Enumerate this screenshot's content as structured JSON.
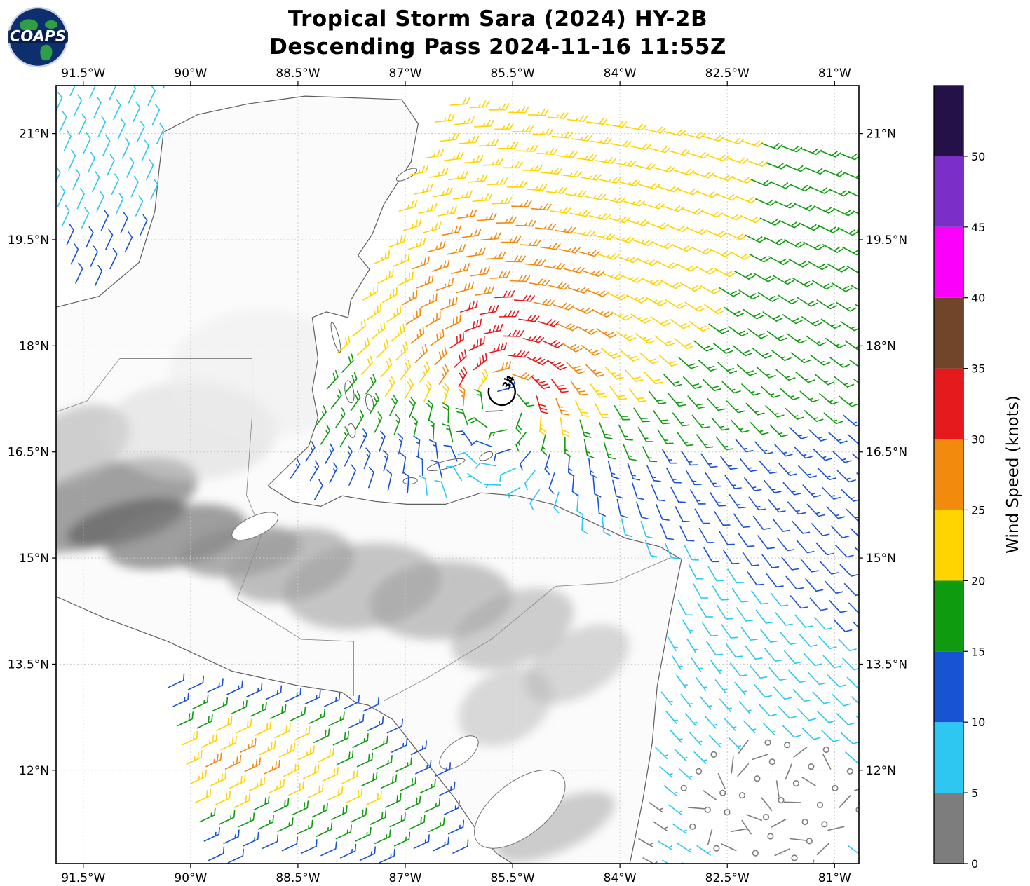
{
  "logo": {
    "text": "COAPS"
  },
  "chart_data": {
    "type": "wind_barb_map",
    "title": "Tropical Storm Sara (2024) HY-2B",
    "subtitle": "Descending Pass 2024-11-16 11:55Z",
    "map_extent": {
      "lon_min": -91.88,
      "lon_max": -80.66,
      "lat_min": 10.68,
      "lat_max": 21.68
    },
    "lon_ticks": [
      {
        "v": -91.5,
        "label": "91.5°W"
      },
      {
        "v": -90.0,
        "label": "90°W"
      },
      {
        "v": -88.5,
        "label": "88.5°W"
      },
      {
        "v": -87.0,
        "label": "87°W"
      },
      {
        "v": -85.5,
        "label": "85.5°W"
      },
      {
        "v": -84.0,
        "label": "84°W"
      },
      {
        "v": -82.5,
        "label": "82.5°W"
      },
      {
        "v": -81.0,
        "label": "81°W"
      }
    ],
    "lat_ticks": [
      {
        "v": 21.0,
        "label": "21°N"
      },
      {
        "v": 19.5,
        "label": "19.5°N"
      },
      {
        "v": 18.0,
        "label": "18°N"
      },
      {
        "v": 16.5,
        "label": "16.5°N"
      },
      {
        "v": 15.0,
        "label": "15°N"
      },
      {
        "v": 13.5,
        "label": "13.5°N"
      },
      {
        "v": 12.0,
        "label": "12°N"
      }
    ],
    "colorbar": {
      "label": "Wind Speed (knots)",
      "ticks": [
        0,
        5,
        10,
        15,
        20,
        25,
        30,
        35,
        40,
        45,
        50
      ],
      "bin_size": 5,
      "bins": [
        {
          "upto": 5,
          "color": "#7d7d7d"
        },
        {
          "upto": 10,
          "color": "#2ec7f2"
        },
        {
          "upto": 15,
          "color": "#1853d4"
        },
        {
          "upto": 20,
          "color": "#0f9b0f"
        },
        {
          "upto": 25,
          "color": "#ffd400"
        },
        {
          "upto": 30,
          "color": "#f28a0e"
        },
        {
          "upto": 35,
          "color": "#e41a1c"
        },
        {
          "upto": 40,
          "color": "#70452a"
        },
        {
          "upto": 45,
          "color": "#fb00fb"
        },
        {
          "upto": 50,
          "color": "#7c2fc8"
        },
        {
          "upto": 55,
          "color": "#241147"
        }
      ]
    },
    "storm_annotation": {
      "label": "34",
      "lon": -85.65,
      "lat": 17.35
    },
    "wind_model": {
      "storm_center": [
        -85.65,
        17.35
      ],
      "vmax_kt": 30,
      "rmax_deg": 0.5,
      "decay_exp": 0.5,
      "clamp_kt": 34.4,
      "caribbean_bg": [
        -12,
        0
      ],
      "gulf": {
        "dir_from_deg": 25,
        "base_kt": 8.0,
        "lat_factor": 0.9,
        "ref_lat": 21.7,
        "lon_factor": 0.25,
        "ref_lon": -91.9
      },
      "pacific": {
        "dir_from_deg": 65,
        "base_kt": 8,
        "bumps": [
          {
            "c": [
              -89.4,
              12.05
            ],
            "amp": 18,
            "sx": 3.4,
            "sy": 0.9
          },
          {
            "c": [
              -87.2,
              11.3
            ],
            "amp": 9,
            "sx": 1.1,
            "sy": 0.6
          }
        ]
      },
      "calm_patch": {
        "c": [
          -81.85,
          11.55
        ],
        "rx": 1.35,
        "ry": 0.95
      }
    },
    "wind_grid": {
      "origin": [
        -92.35,
        22.15
      ],
      "col_step": [
        0.272,
        -0.034
      ],
      "row_step": [
        0.062,
        -0.272
      ],
      "ncols": 49,
      "nrows": 47
    },
    "barb_style": {
      "length": 23,
      "feather_len": 9.5,
      "half_len": 4.8,
      "spacing": 5.3,
      "width": 1.6,
      "calm_radius": 3.8
    },
    "swath_regions": {
      "caribbean": [
        [
          -86.45,
          21.68
        ],
        [
          -80.55,
          21.68
        ],
        [
          -80.55,
          10.68
        ],
        [
          -83.95,
          10.68
        ],
        [
          -83.85,
          10.95
        ],
        [
          -83.7,
          11.55
        ],
        [
          -83.56,
          12.25
        ],
        [
          -83.5,
          12.85
        ],
        [
          -83.32,
          14.05
        ],
        [
          -83.14,
          14.99
        ],
        [
          -83.55,
          15.22
        ],
        [
          -84.0,
          15.32
        ],
        [
          -84.95,
          15.82
        ],
        [
          -85.5,
          15.93
        ],
        [
          -85.95,
          15.95
        ],
        [
          -86.48,
          15.8
        ],
        [
          -87.45,
          15.86
        ],
        [
          -88.22,
          15.8
        ],
        [
          -88.62,
          15.88
        ],
        [
          -88.88,
          16.22
        ],
        [
          -88.35,
          17.18
        ],
        [
          -88.18,
          17.4
        ]
      ],
      "gulf_of_mexico": [
        [
          -91.92,
          21.68
        ],
        [
          -90.3,
          21.68
        ],
        [
          -90.43,
          21.02
        ],
        [
          -90.52,
          19.95
        ],
        [
          -90.74,
          19.2
        ],
        [
          -91.28,
          18.7
        ],
        [
          -91.92,
          18.5
        ]
      ],
      "pacific": [
        [
          -91.92,
          13.68
        ],
        [
          -90.3,
          13.4
        ],
        [
          -89.6,
          13.3
        ],
        [
          -88.2,
          13.1
        ],
        [
          -87.62,
          12.92
        ],
        [
          -87.25,
          12.78
        ],
        [
          -86.68,
          12.12
        ],
        [
          -86.35,
          11.58
        ],
        [
          -86.28,
          10.68
        ],
        [
          -91.92,
          10.68
        ]
      ]
    },
    "map": {
      "mainland": [
        [
          -90.38,
          21.02
        ],
        [
          -89.9,
          21.27
        ],
        [
          -89.2,
          21.42
        ],
        [
          -88.4,
          21.53
        ],
        [
          -87.55,
          21.5
        ],
        [
          -87.05,
          21.48
        ],
        [
          -86.82,
          21.14
        ],
        [
          -86.92,
          20.6
        ],
        [
          -87.3,
          20.0
        ],
        [
          -87.46,
          19.58
        ],
        [
          -87.66,
          19.28
        ],
        [
          -87.5,
          19.08
        ],
        [
          -87.76,
          18.65
        ],
        [
          -87.8,
          18.4
        ],
        [
          -88.1,
          18.48
        ],
        [
          -88.3,
          18.4
        ],
        [
          -88.22,
          17.82
        ],
        [
          -88.3,
          17.38
        ],
        [
          -88.22,
          16.98
        ],
        [
          -88.35,
          16.58
        ],
        [
          -88.72,
          16.22
        ],
        [
          -88.92,
          16.02
        ],
        [
          -88.58,
          15.8
        ],
        [
          -88.18,
          15.73
        ],
        [
          -87.88,
          15.88
        ],
        [
          -87.42,
          15.8
        ],
        [
          -86.98,
          15.76
        ],
        [
          -86.44,
          15.76
        ],
        [
          -85.94,
          15.92
        ],
        [
          -85.44,
          15.88
        ],
        [
          -84.94,
          15.76
        ],
        [
          -84.42,
          15.52
        ],
        [
          -83.92,
          15.28
        ],
        [
          -83.44,
          15.16
        ],
        [
          -83.14,
          14.98
        ],
        [
          -83.3,
          14.18
        ],
        [
          -83.48,
          13.18
        ],
        [
          -83.55,
          12.38
        ],
        [
          -83.68,
          11.58
        ],
        [
          -83.82,
          10.88
        ],
        [
          -83.88,
          10.6
        ],
        [
          -85.38,
          10.6
        ],
        [
          -85.72,
          10.82
        ],
        [
          -85.98,
          11.12
        ],
        [
          -86.32,
          11.62
        ],
        [
          -86.68,
          12.08
        ],
        [
          -87.18,
          12.72
        ],
        [
          -87.52,
          12.92
        ],
        [
          -87.7,
          12.96
        ],
        [
          -87.88,
          13.1
        ],
        [
          -88.52,
          13.2
        ],
        [
          -89.42,
          13.4
        ],
        [
          -90.32,
          13.82
        ],
        [
          -91.22,
          14.16
        ],
        [
          -91.98,
          14.5
        ],
        [
          -91.98,
          18.52
        ],
        [
          -91.28,
          18.7
        ],
        [
          -90.72,
          19.18
        ],
        [
          -90.5,
          19.9
        ],
        [
          -90.44,
          20.5
        ]
      ],
      "islands": [
        [
          -86.98,
          20.42,
          0.16,
          0.055,
          -28
        ],
        [
          -87.97,
          18.12,
          0.04,
          0.22,
          -15
        ],
        [
          -87.78,
          17.35,
          0.06,
          0.16,
          -10
        ],
        [
          -87.5,
          17.2,
          0.05,
          0.12,
          -10
        ],
        [
          -87.75,
          16.8,
          0.05,
          0.1,
          -10
        ],
        [
          -86.43,
          16.32,
          0.27,
          0.055,
          -14
        ],
        [
          -85.87,
          16.44,
          0.1,
          0.05,
          -25
        ],
        [
          -86.93,
          16.09,
          0.1,
          0.045,
          -5
        ]
      ],
      "lakes": [
        [
          -89.1,
          15.45,
          0.35,
          0.14,
          -25
        ],
        [
          -85.4,
          11.45,
          0.75,
          0.38,
          -38
        ],
        [
          -86.25,
          12.25,
          0.32,
          0.16,
          -38
        ]
      ],
      "borders": [
        [
          [
            -90.99,
            17.82
          ],
          [
            -89.14,
            17.82
          ],
          [
            -89.14,
            17.02
          ],
          [
            -89.22,
            15.89
          ]
        ],
        [
          [
            -90.99,
            17.82
          ],
          [
            -91.45,
            17.22
          ],
          [
            -91.92,
            17.05
          ]
        ],
        [
          [
            -89.22,
            15.89
          ],
          [
            -89.0,
            15.35
          ],
          [
            -89.35,
            14.42
          ]
        ],
        [
          [
            -89.35,
            14.42
          ],
          [
            -88.45,
            13.85
          ],
          [
            -87.72,
            13.82
          ],
          [
            -87.72,
            13.05
          ]
        ],
        [
          [
            -87.3,
            12.98
          ],
          [
            -86.7,
            13.3
          ],
          [
            -85.8,
            13.85
          ],
          [
            -84.9,
            14.6
          ],
          [
            -84.1,
            14.65
          ],
          [
            -83.3,
            15.0
          ]
        ]
      ],
      "terrain": [
        [
          -91.2,
          15.75,
          1.35,
          0.55,
          -18,
          "#8f8f8f",
          0.85
        ],
        [
          -90.9,
          15.5,
          0.85,
          0.28,
          -15,
          "#6a6a6a",
          0.8
        ],
        [
          -90.2,
          15.3,
          1.0,
          0.42,
          -12,
          "#7d7d7d",
          0.75
        ],
        [
          -89.3,
          15.1,
          0.85,
          0.35,
          -8,
          "#8a8a8a",
          0.7
        ],
        [
          -91.6,
          16.6,
          0.8,
          0.5,
          -25,
          "#b0b0b0",
          0.6
        ],
        [
          -88.6,
          14.9,
          0.9,
          0.5,
          -12,
          "#9b9b9b",
          0.65
        ],
        [
          -87.6,
          14.6,
          1.1,
          0.6,
          -8,
          "#a0a0a0",
          0.6
        ],
        [
          -86.5,
          14.4,
          1.0,
          0.55,
          -5,
          "#9f9f9f",
          0.6
        ],
        [
          -85.5,
          14.0,
          0.9,
          0.5,
          -22,
          "#a8a8a8",
          0.55
        ],
        [
          -84.6,
          13.5,
          0.8,
          0.45,
          -30,
          "#b2b2b2",
          0.5
        ],
        [
          -85.6,
          12.9,
          0.7,
          0.5,
          -30,
          "#b5b5b5",
          0.5
        ],
        [
          -84.9,
          11.2,
          0.9,
          0.35,
          -25,
          "#a5a5a5",
          0.55
        ],
        [
          -90.0,
          16.8,
          1.2,
          0.7,
          0,
          "#d8d8d8",
          0.5
        ],
        [
          -89.0,
          17.6,
          1.3,
          0.9,
          0,
          "#ebebeb",
          0.5
        ]
      ]
    }
  }
}
